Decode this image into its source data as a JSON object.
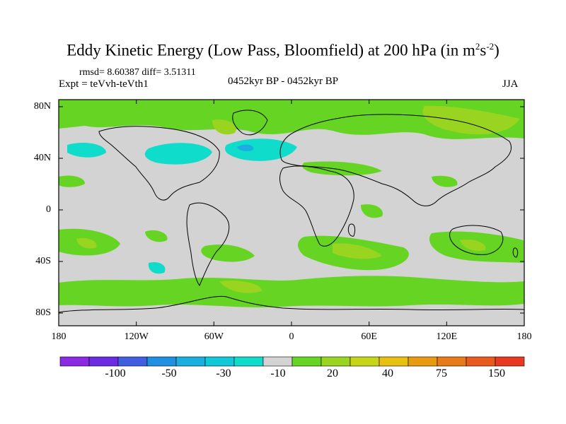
{
  "title": {
    "main": "Eddy Kinetic Energy (Low Pass, Bloomfield) at 200 hPa (in m",
    "sup1": "2",
    "mid": "s",
    "sup2": "-2",
    "end": ")"
  },
  "stats": "rmsd= 8.60387 diff= 3.51311",
  "expt": "Expt = teVvh-teVth1",
  "period": "0452kyr BP - 0452kyr BP",
  "season": "JJA",
  "lat_labels": [
    "80N",
    "40N",
    "0",
    "40S",
    "80S"
  ],
  "lon_labels": [
    "180",
    "120W",
    "60W",
    "0",
    "60E",
    "120E",
    "180"
  ],
  "colorbar": {
    "colors": [
      "#8a2be2",
      "#6a2be2",
      "#3f5fe0",
      "#1e90e0",
      "#19b0e0",
      "#10c8d8",
      "#10dccc",
      "#d3d3d3",
      "#66d422",
      "#98d420",
      "#c8d418",
      "#e8c010",
      "#e89a10",
      "#e87a18",
      "#e85a1e",
      "#e83a22"
    ],
    "labels": [
      "-100",
      "-50",
      "-30",
      "-10",
      "20",
      "40",
      "75",
      "150"
    ]
  },
  "map_colors": {
    "ocean_background": "#d3d3d3",
    "positive_low": "#66d422",
    "positive_mid": "#98d420",
    "negative_low": "#10dccc",
    "negative_mid": "#19b0e0",
    "coastline": "#000000"
  }
}
